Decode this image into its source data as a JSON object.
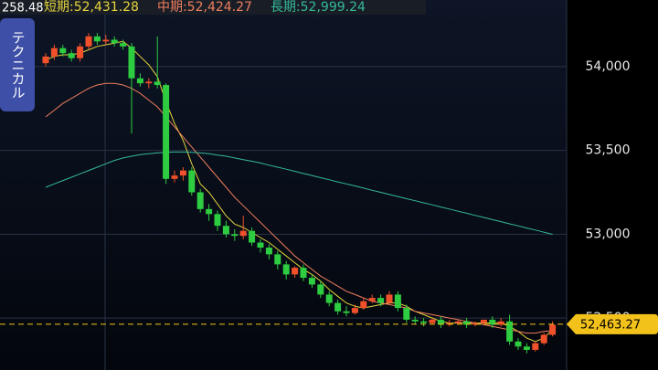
{
  "chart_data": {
    "type": "candlestick",
    "top_left_label": "258.48",
    "side_button": "テクニカル",
    "open": [
      54020,
      54060,
      54110,
      54080,
      54050,
      54120,
      54180,
      54150,
      54160,
      54140,
      54120,
      53930,
      53900,
      53910,
      53890,
      53330,
      53350,
      53380,
      53250,
      53150,
      53120,
      53050,
      53000,
      52990,
      53020,
      52950,
      52920,
      52880,
      52820,
      52760,
      52800,
      52740,
      52700,
      52640,
      52590,
      52540,
      52530,
      52560,
      52600,
      52620,
      52590,
      52640,
      52560,
      52490,
      52480,
      52470,
      52490,
      52460,
      52470,
      52480,
      52460,
      52470,
      52490,
      52460,
      52480,
      52360,
      52330,
      52310,
      52350,
      52400
    ],
    "high": [
      54080,
      54130,
      54130,
      54100,
      54140,
      54200,
      54200,
      54190,
      54180,
      54160,
      54140,
      53960,
      53930,
      54180,
      53900,
      53380,
      53400,
      53400,
      53270,
      53180,
      53140,
      53080,
      53030,
      53110,
      53040,
      52970,
      52940,
      52900,
      52840,
      52810,
      52820,
      52760,
      52720,
      52660,
      52610,
      52570,
      52580,
      52620,
      52640,
      52640,
      52660,
      52660,
      52580,
      52510,
      52500,
      52500,
      52510,
      52490,
      52490,
      52500,
      52480,
      52490,
      52510,
      52500,
      52520,
      52380,
      52350,
      52360,
      52410,
      52480
    ],
    "low": [
      54000,
      54040,
      54060,
      54030,
      54030,
      54100,
      54130,
      54130,
      54120,
      54100,
      53600,
      53880,
      53870,
      53870,
      53300,
      53310,
      53320,
      53230,
      53130,
      53080,
      53020,
      52980,
      52960,
      52970,
      52930,
      52890,
      52850,
      52790,
      52730,
      52740,
      52720,
      52680,
      52620,
      52570,
      52520,
      52510,
      52520,
      52550,
      52590,
      52570,
      52580,
      52540,
      52470,
      52460,
      52450,
      52460,
      52440,
      52450,
      52460,
      52440,
      52450,
      52460,
      52440,
      52450,
      52340,
      52310,
      52290,
      52300,
      52340,
      52390
    ],
    "close": [
      54060,
      54110,
      54080,
      54050,
      54120,
      54180,
      54150,
      54160,
      54140,
      54120,
      53930,
      53900,
      53910,
      53890,
      53330,
      53350,
      53380,
      53250,
      53150,
      53120,
      53050,
      53000,
      52990,
      53020,
      52950,
      52920,
      52880,
      52820,
      52760,
      52800,
      52740,
      52700,
      52640,
      52590,
      52540,
      52530,
      52560,
      52600,
      52620,
      52590,
      52640,
      52560,
      52490,
      52480,
      52470,
      52490,
      52460,
      52470,
      52480,
      52460,
      52470,
      52490,
      52460,
      52480,
      52360,
      52330,
      52310,
      52350,
      52400,
      52460
    ],
    "up_color": "#f0512b",
    "down_color": "#2ecc40",
    "series": [
      {
        "name": "短期:52,431.28",
        "color": "#e6d43c",
        "values": [
          54040,
          54060,
          54070,
          54070,
          54080,
          54100,
          54120,
          54130,
          54140,
          54150,
          54110,
          54060,
          54010,
          53940,
          53790,
          53660,
          53560,
          53420,
          53300,
          53250,
          53180,
          53110,
          53060,
          53040,
          53010,
          52980,
          52950,
          52910,
          52870,
          52830,
          52790,
          52760,
          52720,
          52670,
          52630,
          52590,
          52570,
          52560,
          52570,
          52580,
          52590,
          52590,
          52570,
          52540,
          52520,
          52500,
          52480,
          52470,
          52470,
          52470,
          52470,
          52470,
          52470,
          52470,
          52450,
          52420,
          52380,
          52360,
          52380,
          52431.28
        ]
      },
      {
        "name": "中期:52,424.27",
        "color": "#ef7d5e",
        "values": [
          53700,
          53740,
          53780,
          53810,
          53840,
          53870,
          53890,
          53900,
          53900,
          53890,
          53870,
          53840,
          53800,
          53760,
          53700,
          53640,
          53580,
          53520,
          53460,
          53400,
          53340,
          53280,
          53220,
          53170,
          53120,
          53070,
          53020,
          52970,
          52920,
          52870,
          52830,
          52790,
          52750,
          52720,
          52690,
          52660,
          52640,
          52620,
          52600,
          52590,
          52580,
          52570,
          52560,
          52540,
          52530,
          52520,
          52510,
          52500,
          52490,
          52480,
          52470,
          52460,
          52450,
          52440,
          52430,
          52420,
          52410,
          52410,
          52420,
          52424.27
        ]
      },
      {
        "name": "長期:52,999.24",
        "color": "#35b99a",
        "values": [
          53280,
          53300,
          53320,
          53340,
          53360,
          53380,
          53400,
          53420,
          53440,
          53455,
          53465,
          53475,
          53480,
          53485,
          53488,
          53490,
          53490,
          53488,
          53485,
          53480,
          53472,
          53465,
          53455,
          53445,
          53435,
          53425,
          53412,
          53400,
          53388,
          53375,
          53362,
          53350,
          53337,
          53325,
          53312,
          53300,
          53288,
          53275,
          53262,
          53250,
          53237,
          53225,
          53212,
          53200,
          53187,
          53175,
          53162,
          53150,
          53137,
          53125,
          53112,
          53100,
          53087,
          53075,
          53062,
          53050,
          53037,
          53025,
          53012,
          52999.24
        ]
      }
    ],
    "ylim": [
      52190,
      54397
    ],
    "yticks": [
      {
        "value": 52500,
        "label": "52,500"
      },
      {
        "value": 53000,
        "label": "53,000"
      },
      {
        "value": 53500,
        "label": "53,500"
      },
      {
        "value": 54000,
        "label": "54,000"
      }
    ],
    "grid": true,
    "last_price": 52463.27,
    "last_price_label": "52,463.27",
    "last_price_color": "#f2c21b"
  }
}
